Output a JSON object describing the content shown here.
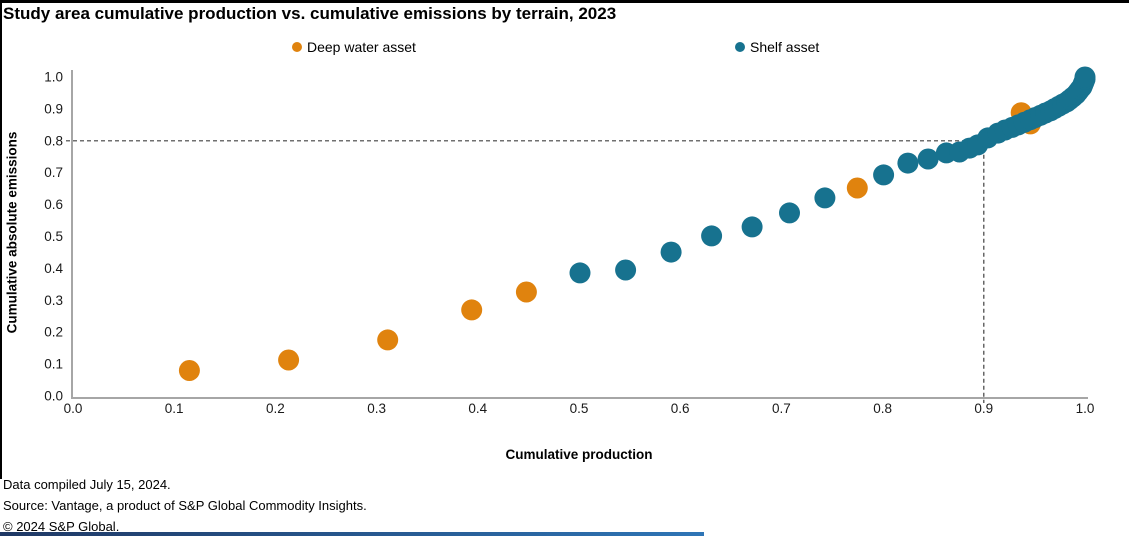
{
  "title": "Study area cumulative production vs. cumulative emissions by terrain, 2023",
  "legend": [
    {
      "label": "Deep water asset",
      "color": "#E0830E"
    },
    {
      "label": "Shelf asset",
      "color": "#17728F"
    }
  ],
  "footer": {
    "line1": "Data compiled July 15, 2024.",
    "line2": "Source: Vantage, a product of S&P Global Commodity Insights.",
    "line3": "© 2024 S&P Global."
  },
  "chart_data": {
    "type": "scatter",
    "title": "Study area cumulative production vs. cumulative emissions by terrain, 2023",
    "xlabel": "Cumulative production",
    "ylabel": "Cumulative absolute emissions",
    "xlim": [
      0.0,
      1.0
    ],
    "ylim": [
      0.0,
      1.0
    ],
    "xticks": [
      "0.0",
      "0.1",
      "0.2",
      "0.3",
      "0.4",
      "0.5",
      "0.6",
      "0.7",
      "0.8",
      "0.9",
      "1.0"
    ],
    "yticks": [
      "0.0",
      "0.1",
      "0.2",
      "0.3",
      "0.4",
      "0.5",
      "0.6",
      "0.7",
      "0.8",
      "0.9",
      "1.0"
    ],
    "grid": false,
    "legend_position": "top",
    "axis_color": "#A6A6A6",
    "tick_label_color": "#1a1a1a",
    "reference_lines": {
      "horizontal_y": 0.8,
      "vertical_x": 0.9,
      "style": "dashed",
      "color": "#404040"
    },
    "series": [
      {
        "name": "Deep water asset",
        "color": "#E0830E",
        "points": [
          [
            0.115,
            0.08
          ],
          [
            0.213,
            0.113
          ],
          [
            0.311,
            0.176
          ],
          [
            0.394,
            0.27
          ],
          [
            0.448,
            0.326
          ],
          [
            0.775,
            0.652
          ],
          [
            0.937,
            0.888
          ],
          [
            0.946,
            0.853
          ]
        ]
      },
      {
        "name": "Shelf asset",
        "color": "#17728F",
        "points": [
          [
            0.501,
            0.386
          ],
          [
            0.546,
            0.395
          ],
          [
            0.591,
            0.451
          ],
          [
            0.631,
            0.502
          ],
          [
            0.671,
            0.53
          ],
          [
            0.708,
            0.574
          ],
          [
            0.743,
            0.621
          ],
          [
            0.801,
            0.693
          ],
          [
            0.825,
            0.73
          ],
          [
            0.845,
            0.743
          ],
          [
            0.863,
            0.762
          ],
          [
            0.876,
            0.765
          ],
          [
            0.886,
            0.777
          ],
          [
            0.894,
            0.787
          ],
          [
            0.904,
            0.809
          ],
          [
            0.914,
            0.824
          ],
          [
            0.921,
            0.834
          ],
          [
            0.928,
            0.842
          ],
          [
            0.934,
            0.85
          ],
          [
            0.94,
            0.858
          ],
          [
            0.946,
            0.866
          ],
          [
            0.951,
            0.873
          ],
          [
            0.956,
            0.88
          ],
          [
            0.961,
            0.887
          ],
          [
            0.966,
            0.894
          ],
          [
            0.97,
            0.901
          ],
          [
            0.974,
            0.908
          ],
          [
            0.978,
            0.915
          ],
          [
            0.982,
            0.922
          ],
          [
            0.985,
            0.929
          ],
          [
            0.988,
            0.937
          ],
          [
            0.991,
            0.945
          ],
          [
            0.993,
            0.953
          ],
          [
            0.995,
            0.961
          ],
          [
            0.997,
            0.969
          ],
          [
            0.998,
            0.977
          ],
          [
            0.999,
            0.985
          ],
          [
            1.0,
            0.993
          ],
          [
            1.0,
            1.0
          ]
        ]
      }
    ]
  }
}
